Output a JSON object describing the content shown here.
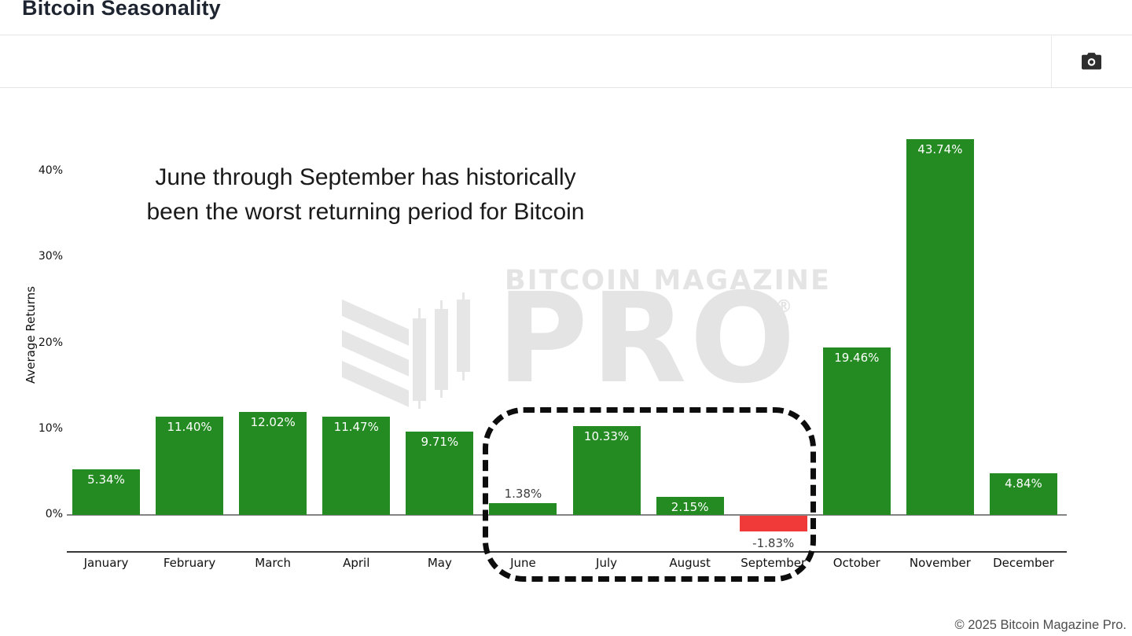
{
  "header": {
    "title": "Bitcoin Seasonality"
  },
  "toolbar": {
    "icons": [
      "camera-icon"
    ]
  },
  "chart_data": {
    "type": "bar",
    "title": "Bitcoin Seasonality",
    "categories": [
      "January",
      "February",
      "March",
      "April",
      "May",
      "June",
      "July",
      "August",
      "September",
      "October",
      "November",
      "December"
    ],
    "values": [
      5.34,
      11.4,
      12.02,
      11.47,
      9.71,
      1.38,
      10.33,
      2.15,
      -1.83,
      19.46,
      43.74,
      4.84
    ],
    "bar_labels": [
      "5.34%",
      "11.40%",
      "12.02%",
      "11.47%",
      "9.71%",
      "1.38%",
      "10.33%",
      "2.15%",
      "-1.83%",
      "19.46%",
      "43.74%",
      "4.84%"
    ],
    "xlabel": "",
    "ylabel": "Average Returns",
    "yticks": [
      {
        "v": 0,
        "label": "0%"
      },
      {
        "v": 10,
        "label": "10%"
      },
      {
        "v": 20,
        "label": "20%"
      },
      {
        "v": 30,
        "label": "30%"
      },
      {
        "v": 40,
        "label": "40%"
      }
    ],
    "ylim": [
      -6,
      46
    ],
    "grid": false,
    "legend": false,
    "positive_color": "#248a22",
    "negative_color": "#f03a3a",
    "annotation_lines": [
      "June through September has historically",
      "been the worst returning period for Bitcoin"
    ],
    "highlight": {
      "months": [
        "June",
        "July",
        "August",
        "September"
      ],
      "style": "dashed-rounded-box"
    }
  },
  "watermark": {
    "brand": "BITCOIN MAGAZINE",
    "pro": "PRO",
    "registered": "®"
  },
  "footer": {
    "copyright": "© 2025 Bitcoin Magazine Pro."
  }
}
